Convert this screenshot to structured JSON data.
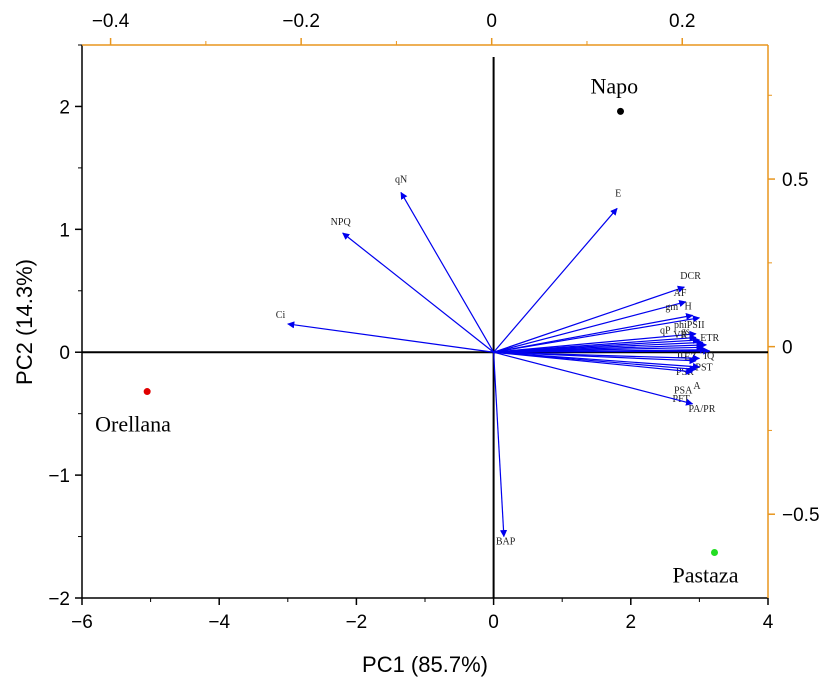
{
  "chart_data": {
    "type": "scatter",
    "title": "",
    "xlabel": "PC1 (85.7%)",
    "ylabel": "PC2 (14.3%)",
    "xlim": [
      -6,
      4
    ],
    "ylim": [
      -2,
      2.5
    ],
    "x_ticks": [
      -6,
      -4,
      -2,
      0,
      2,
      4
    ],
    "y_ticks": [
      -2,
      -1,
      0,
      1,
      2
    ],
    "top_axis": {
      "lim": [
        -0.43,
        0.29
      ],
      "ticks": [
        -0.4,
        -0.2,
        0,
        0.2
      ],
      "color": "#e8961e"
    },
    "right_axis": {
      "lim": [
        -0.75,
        0.9
      ],
      "ticks": [
        -0.5,
        0,
        0.5
      ],
      "color": "#e8961e"
    },
    "score_points": [
      {
        "name": "Napo",
        "x": 1.85,
        "y": 1.96,
        "color": "#000000"
      },
      {
        "name": "Orellana",
        "x": -5.05,
        "y": -0.32,
        "color": "#e00000"
      },
      {
        "name": "Pastaza",
        "x": 3.22,
        "y": -1.63,
        "color": "#22dd22"
      }
    ],
    "loadings_color": "#0000ee",
    "loadings": [
      {
        "name": "qN",
        "x": -1.35,
        "y": 1.3
      },
      {
        "name": "NPQ",
        "x": -2.2,
        "y": 0.97
      },
      {
        "name": "Ci",
        "x": -3.0,
        "y": 0.23
      },
      {
        "name": "E",
        "x": 1.8,
        "y": 1.17
      },
      {
        "name": "DCR",
        "x": 2.78,
        "y": 0.53
      },
      {
        "name": "AF",
        "x": 2.8,
        "y": 0.41
      },
      {
        "name": "H",
        "x": 2.9,
        "y": 0.3
      },
      {
        "name": "gm",
        "x": 3.0,
        "y": 0.28
      },
      {
        "name": "phiPSII",
        "x": 2.95,
        "y": 0.15
      },
      {
        "name": "qP",
        "x": 2.95,
        "y": 0.12
      },
      {
        "name": "VR",
        "x": 3.0,
        "y": 0.1
      },
      {
        "name": "gs",
        "x": 3.05,
        "y": 0.08
      },
      {
        "name": "ETR",
        "x": 3.1,
        "y": 0.06
      },
      {
        "name": "IL",
        "x": 3.05,
        "y": 0.04
      },
      {
        "name": "EZ",
        "x": 3.1,
        "y": 0.02
      },
      {
        "name": "IQ",
        "x": 3.15,
        "y": 0.01
      },
      {
        "name": "PSR",
        "x": 2.95,
        "y": -0.07
      },
      {
        "name": "PST",
        "x": 3.0,
        "y": -0.05
      },
      {
        "name": "PSA",
        "x": 2.95,
        "y": -0.14
      },
      {
        "name": "A",
        "x": 3.0,
        "y": -0.12
      },
      {
        "name": "PFT",
        "x": 2.9,
        "y": -0.16
      },
      {
        "name": "PA/PR",
        "x": 2.9,
        "y": -0.42
      },
      {
        "name": "BAP",
        "x": 0.15,
        "y": -1.5
      }
    ]
  }
}
